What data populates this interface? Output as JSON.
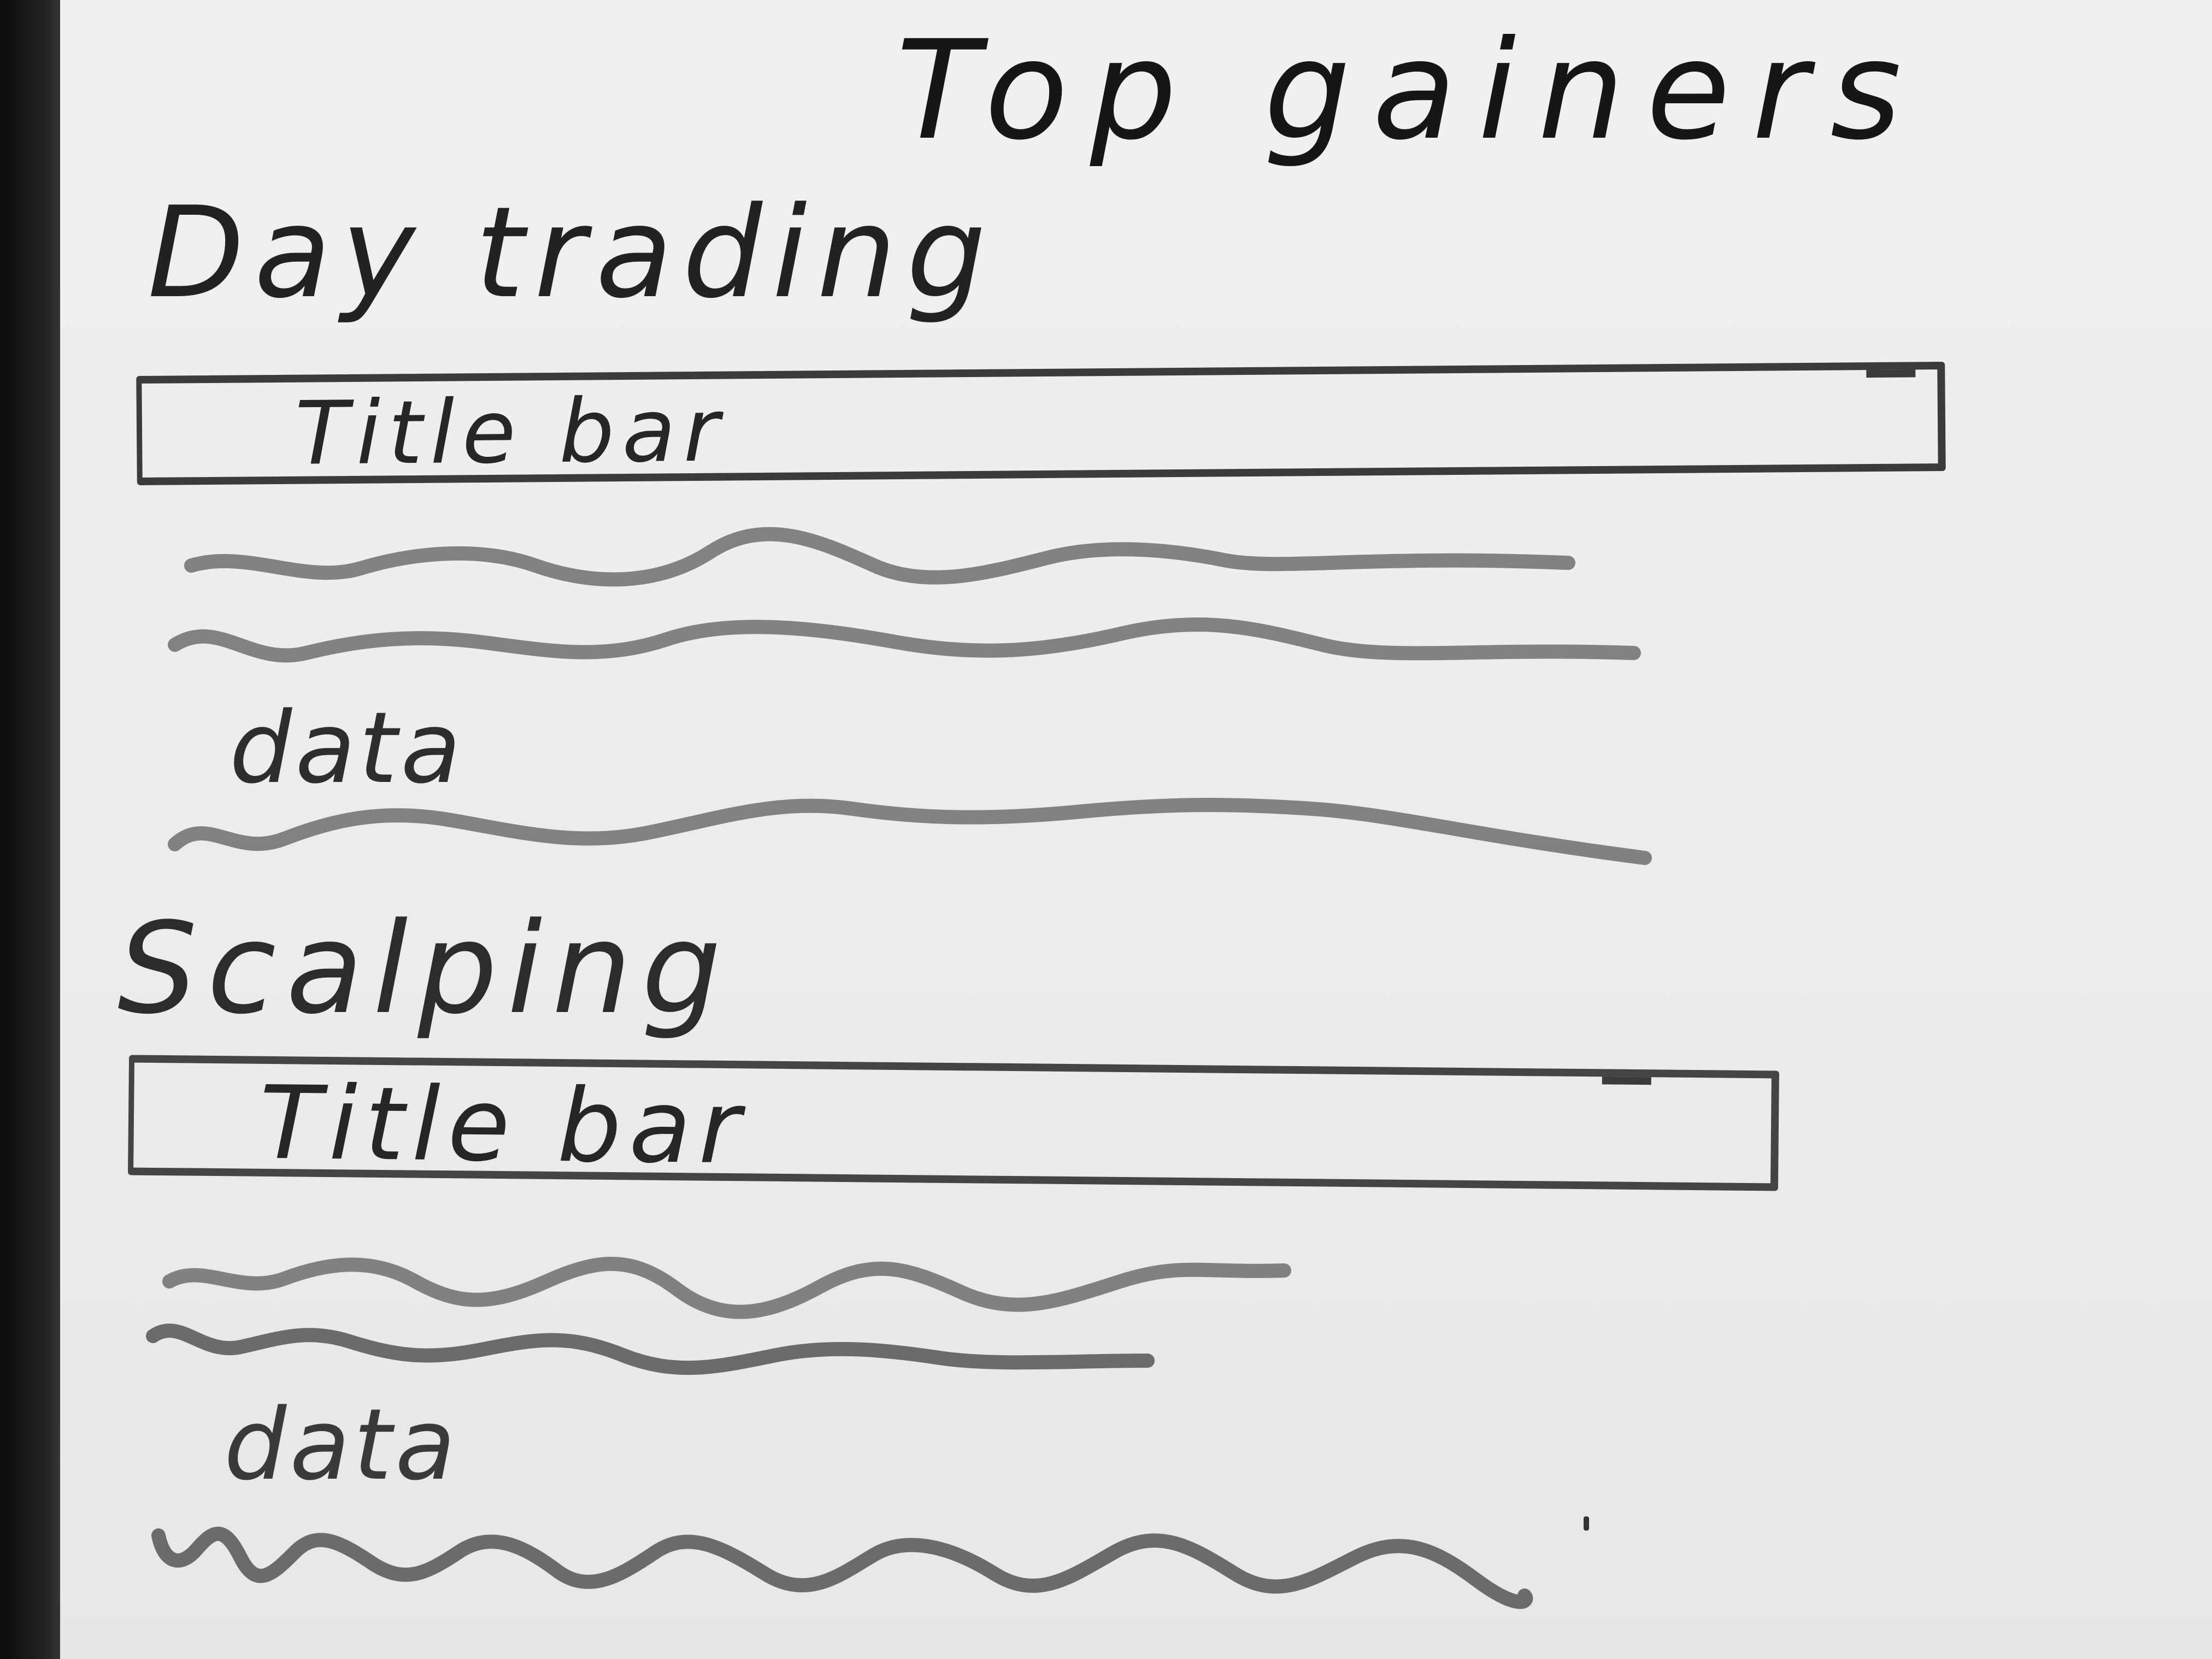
{
  "page": {
    "title": "Top gainers"
  },
  "sections": [
    {
      "heading": "Day trading",
      "title_bar": "Title bar",
      "data_label": "data"
    },
    {
      "heading": "Scalping",
      "title_bar": "Title bar",
      "data_label": "data"
    }
  ]
}
